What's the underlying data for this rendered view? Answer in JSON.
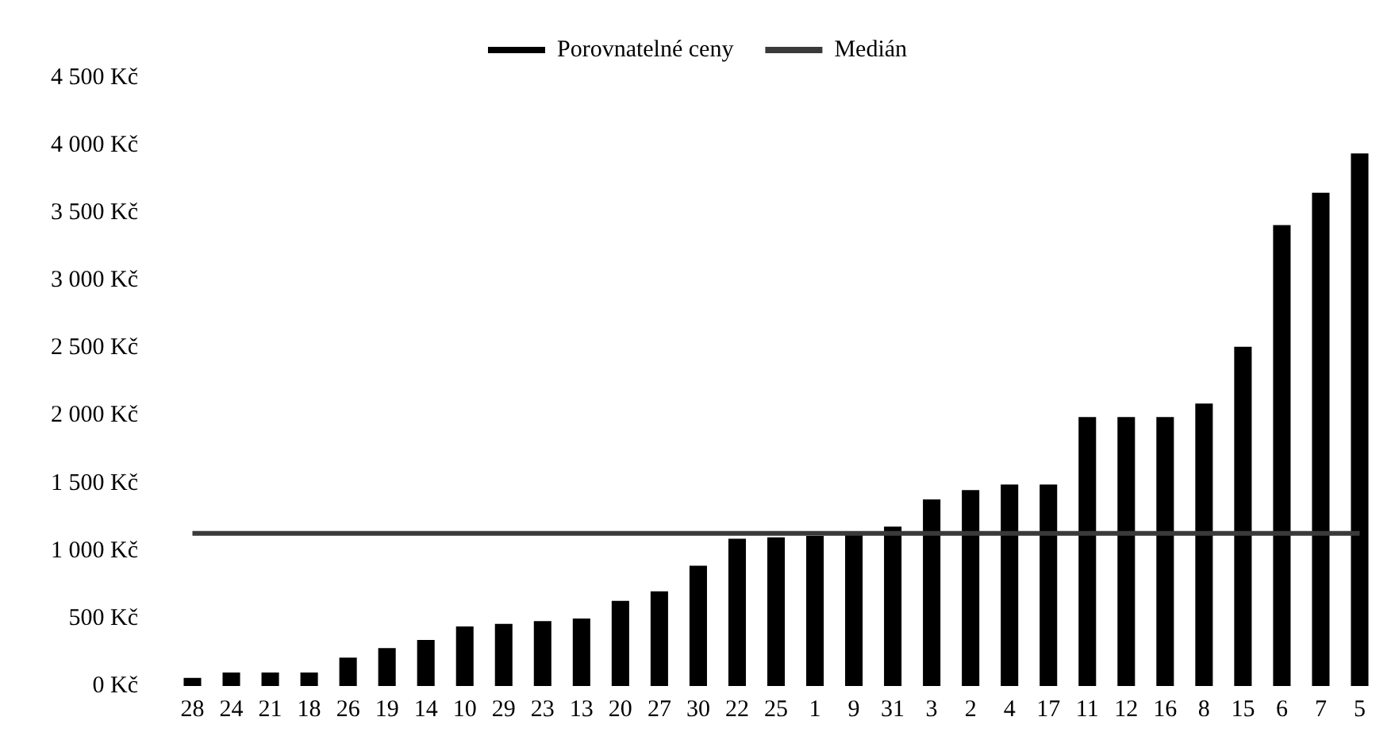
{
  "chart_data": {
    "type": "bar",
    "categories": [
      "28",
      "24",
      "21",
      "18",
      "26",
      "19",
      "14",
      "10",
      "29",
      "23",
      "13",
      "20",
      "27",
      "30",
      "22",
      "25",
      "1",
      "9",
      "31",
      "3",
      "2",
      "4",
      "17",
      "11",
      "12",
      "16",
      "8",
      "15",
      "6",
      "7",
      "5"
    ],
    "series": [
      {
        "name": "Porovnatelné ceny",
        "color": "#000000",
        "values": [
          60,
          100,
          100,
          100,
          210,
          280,
          340,
          440,
          460,
          480,
          500,
          630,
          700,
          890,
          1090,
          1100,
          1110,
          1130,
          1180,
          1380,
          1450,
          1490,
          1490,
          1990,
          1990,
          1990,
          2090,
          2510,
          3410,
          3650,
          3940
        ]
      },
      {
        "name": "Medián",
        "type": "line",
        "color": "#3a3a3a",
        "values": [
          1130,
          1130,
          1130,
          1130,
          1130,
          1130,
          1130,
          1130,
          1130,
          1130,
          1130,
          1130,
          1130,
          1130,
          1130,
          1130,
          1130,
          1130,
          1130,
          1130,
          1130,
          1130,
          1130,
          1130,
          1130,
          1130,
          1130,
          1130,
          1130,
          1130,
          1130
        ]
      }
    ],
    "ylim": [
      0,
      4500
    ],
    "yticks": [
      {
        "value": 0,
        "label": "0 Kč"
      },
      {
        "value": 500,
        "label": "500 Kč"
      },
      {
        "value": 1000,
        "label": "1 000 Kč"
      },
      {
        "value": 1500,
        "label": "1 500 Kč"
      },
      {
        "value": 2000,
        "label": "2 000 Kč"
      },
      {
        "value": 2500,
        "label": "2 500 Kč"
      },
      {
        "value": 3000,
        "label": "3 000 Kč"
      },
      {
        "value": 3500,
        "label": "3 500 Kč"
      },
      {
        "value": 4000,
        "label": "4 000 Kč"
      },
      {
        "value": 4500,
        "label": "4 500 Kč"
      }
    ],
    "grid": false,
    "legend": "top",
    "marker": "none",
    "line_style": "solid"
  }
}
